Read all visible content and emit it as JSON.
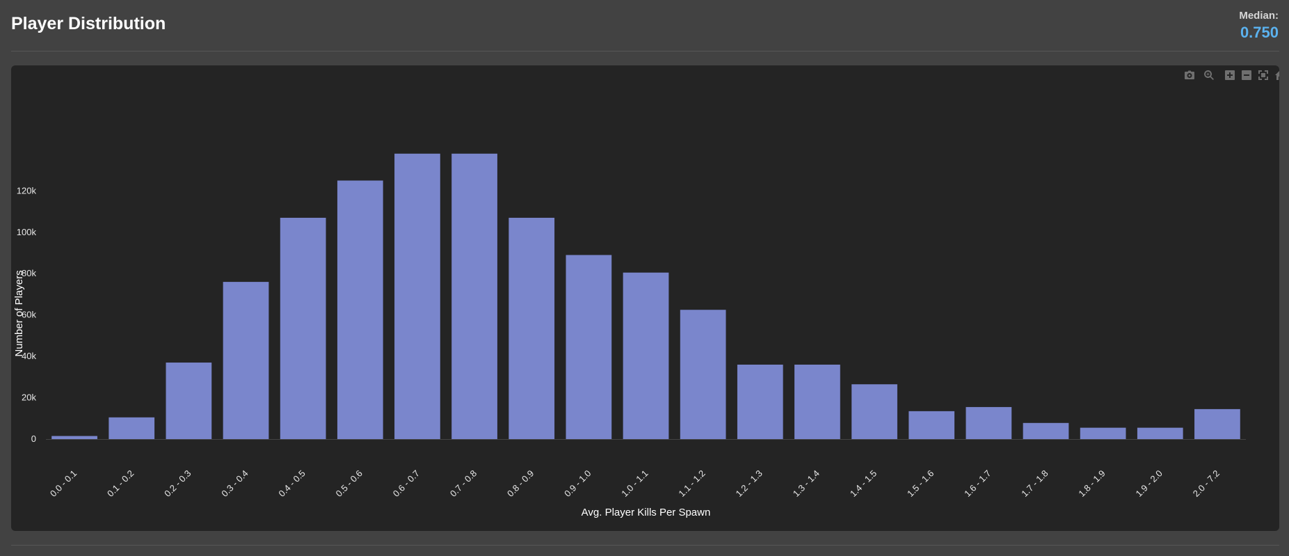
{
  "header": {
    "title": "Player Distribution",
    "median_label": "Median:",
    "median_value": "0.750"
  },
  "modebar": {
    "icons": [
      "camera-icon",
      "zoom-icon",
      "zoom-in-icon",
      "zoom-out-icon",
      "autoscale-icon",
      "home-icon"
    ]
  },
  "colors": {
    "bar": "#7a86cc",
    "background": "#242424",
    "page": "#424242",
    "median": "#5bb2ef"
  },
  "chart_data": {
    "type": "bar",
    "categories": [
      "0.0 - 0.1",
      "0.1 - 0.2",
      "0.2 - 0.3",
      "0.3 - 0.4",
      "0.4 - 0.5",
      "0.5 - 0.6",
      "0.6 - 0.7",
      "0.7 - 0.8",
      "0.8 - 0.9",
      "0.9 - 1.0",
      "1.0 - 1.1",
      "1.1 - 1.2",
      "1.2 - 1.3",
      "1.3 - 1.4",
      "1.4 - 1.5",
      "1.5 - 1.6",
      "1.6 - 1.7",
      "1.7 - 1.8",
      "1.8 - 1.9",
      "1.9 - 2.0",
      "2.0 - 7.2"
    ],
    "values": [
      1500,
      10500,
      37000,
      76000,
      107000,
      125000,
      138000,
      138000,
      107000,
      89000,
      80500,
      62500,
      36000,
      36000,
      26500,
      13500,
      15500,
      7800,
      5500,
      5500,
      14500
    ],
    "xlabel": "Avg. Player Kills Per Spawn",
    "ylabel": "Number of Players",
    "ylim": [
      0,
      145000
    ],
    "yticks": [
      0,
      20000,
      40000,
      60000,
      80000,
      100000,
      120000
    ],
    "ytick_labels": [
      "0",
      "20k",
      "40k",
      "60k",
      "80k",
      "100k",
      "120k"
    ],
    "grid": false,
    "legend": "none"
  }
}
